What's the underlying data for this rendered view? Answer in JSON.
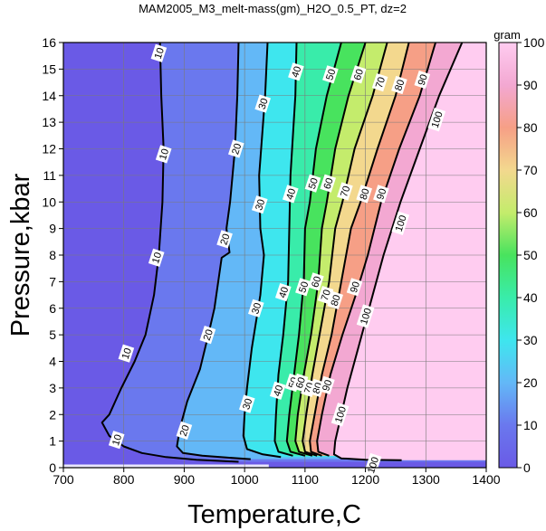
{
  "chart_data": {
    "type": "heatmap",
    "title": "MAM2005_M3_melt-mass(gm)_H2O_0.5_PT, dz=2",
    "xlabel": "Temperature,C",
    "ylabel": "Pressure,kbar",
    "xlim": [
      700,
      1400
    ],
    "ylim": [
      0,
      16
    ],
    "x_ticks": [
      {
        "value": 700,
        "label": "700"
      },
      {
        "value": 800,
        "label": "800"
      },
      {
        "value": 900,
        "label": "900"
      },
      {
        "value": 1000,
        "label": "1000"
      },
      {
        "value": 1100,
        "label": "1100"
      },
      {
        "value": 1200,
        "label": "1200"
      },
      {
        "value": 1300,
        "label": "1300"
      },
      {
        "value": 1400,
        "label": "1400"
      }
    ],
    "y_ticks": [
      {
        "value": 0,
        "label": "0"
      },
      {
        "value": 1,
        "label": "1"
      },
      {
        "value": 2,
        "label": "2"
      },
      {
        "value": 3,
        "label": "3"
      },
      {
        "value": 4,
        "label": "4"
      },
      {
        "value": 5,
        "label": "5"
      },
      {
        "value": 6,
        "label": "6"
      },
      {
        "value": 7,
        "label": "7"
      },
      {
        "value": 8,
        "label": "8"
      },
      {
        "value": 9,
        "label": "9"
      },
      {
        "value": 10,
        "label": "10"
      },
      {
        "value": 11,
        "label": "11"
      },
      {
        "value": 12,
        "label": "12"
      },
      {
        "value": 13,
        "label": "13"
      },
      {
        "value": 14,
        "label": "14"
      },
      {
        "value": 15,
        "label": "15"
      },
      {
        "value": 16,
        "label": "16"
      }
    ],
    "grid": true,
    "colorbar": {
      "label": "gram",
      "range": [
        0,
        100
      ],
      "ticks": [
        {
          "value": 0,
          "label": "0"
        },
        {
          "value": 10,
          "label": "10"
        },
        {
          "value": 20,
          "label": "20"
        },
        {
          "value": 30,
          "label": "30"
        },
        {
          "value": 40,
          "label": "40"
        },
        {
          "value": 50,
          "label": "50"
        },
        {
          "value": 60,
          "label": "60"
        },
        {
          "value": 70,
          "label": "70"
        },
        {
          "value": 80,
          "label": "80"
        },
        {
          "value": 90,
          "label": "90"
        },
        {
          "value": 100,
          "label": "100"
        }
      ],
      "stops": [
        {
          "value": 0,
          "color": "#6a5ae6"
        },
        {
          "value": 10,
          "color": "#6a78ee"
        },
        {
          "value": 20,
          "color": "#63b8f7"
        },
        {
          "value": 30,
          "color": "#3ee6ee"
        },
        {
          "value": 40,
          "color": "#39ecaa"
        },
        {
          "value": 50,
          "color": "#48e35e"
        },
        {
          "value": 60,
          "color": "#c4ec6c"
        },
        {
          "value": 70,
          "color": "#f3d88e"
        },
        {
          "value": 80,
          "color": "#f69f86"
        },
        {
          "value": 90,
          "color": "#f3a8d2"
        },
        {
          "value": 100,
          "color": "#ffccf0"
        }
      ]
    },
    "contours": [
      {
        "level": 10,
        "label": "10",
        "major": true,
        "points": [
          [
            860,
            16
          ],
          [
            862,
            14
          ],
          [
            866,
            12
          ],
          [
            864,
            10
          ],
          [
            858,
            8
          ],
          [
            850,
            6.5
          ],
          [
            836,
            5
          ],
          [
            818,
            4
          ],
          [
            796,
            3
          ],
          [
            776,
            2
          ],
          [
            764,
            1.7
          ],
          [
            776,
            1.2
          ],
          [
            800,
            0.8
          ],
          [
            830,
            0.55
          ],
          [
            870,
            0.4
          ],
          [
            920,
            0.3
          ],
          [
            990,
            0.22
          ]
        ],
        "labels": [
          {
            "x": 858,
            "y": 15.6,
            "text": "10"
          },
          {
            "x": 866,
            "y": 11.8,
            "text": "10"
          },
          {
            "x": 854,
            "y": 7.9,
            "text": "10"
          },
          {
            "x": 804,
            "y": 4.3,
            "text": "10"
          },
          {
            "x": 788,
            "y": 1.05,
            "text": "10"
          }
        ]
      },
      {
        "level": 20,
        "label": "20",
        "major": true,
        "points": [
          [
            990,
            16
          ],
          [
            988,
            14
          ],
          [
            984,
            12
          ],
          [
            976,
            10
          ],
          [
            970,
            9
          ],
          [
            975,
            8.1
          ],
          [
            962,
            7.9
          ],
          [
            950,
            6
          ],
          [
            940,
            5
          ],
          [
            926,
            3.7
          ],
          [
            905,
            2.5
          ],
          [
            893,
            1.5
          ],
          [
            888,
            0.8
          ],
          [
            898,
            0.55
          ],
          [
            930,
            0.45
          ],
          [
            970,
            0.38
          ],
          [
            1010,
            0.32
          ]
        ],
        "labels": [
          {
            "x": 986,
            "y": 12.0,
            "text": "20"
          },
          {
            "x": 967,
            "y": 8.6,
            "text": "20"
          },
          {
            "x": 939,
            "y": 5.0,
            "text": "20"
          },
          {
            "x": 900,
            "y": 1.4,
            "text": "20"
          }
        ]
      },
      {
        "level": 30,
        "label": "30",
        "major": true,
        "points": [
          [
            1038,
            16
          ],
          [
            1034,
            14
          ],
          [
            1024,
            11
          ],
          [
            1026,
            9
          ],
          [
            1032,
            8
          ],
          [
            1026,
            6.5
          ],
          [
            1012,
            4.5
          ],
          [
            1004,
            3
          ],
          [
            1000,
            2
          ],
          [
            998,
            1.2
          ],
          [
            1004,
            0.7
          ],
          [
            1030,
            0.5
          ],
          [
            1060,
            0.4
          ]
        ],
        "labels": [
          {
            "x": 1030,
            "y": 13.7,
            "text": "30"
          },
          {
            "x": 1025,
            "y": 9.9,
            "text": "30"
          },
          {
            "x": 1019,
            "y": 6.0,
            "text": "30"
          },
          {
            "x": 1004,
            "y": 2.4,
            "text": "30"
          }
        ]
      },
      {
        "level": 40,
        "label": "40",
        "major": true,
        "points": [
          [
            1086,
            16
          ],
          [
            1084,
            14
          ],
          [
            1076,
            11
          ],
          [
            1074,
            9
          ],
          [
            1072,
            7
          ],
          [
            1064,
            5
          ],
          [
            1056,
            3.5
          ],
          [
            1052,
            2
          ],
          [
            1050,
            1
          ],
          [
            1056,
            0.6
          ],
          [
            1080,
            0.45
          ]
        ],
        "labels": [
          {
            "x": 1085,
            "y": 14.9,
            "text": "40"
          },
          {
            "x": 1076,
            "y": 10.3,
            "text": "40"
          },
          {
            "x": 1064,
            "y": 6.6,
            "text": "40"
          },
          {
            "x": 1055,
            "y": 2.9,
            "text": "40"
          }
        ]
      },
      {
        "level": 50,
        "label": "50",
        "major": true,
        "points": [
          [
            1160,
            16
          ],
          [
            1136,
            14
          ],
          [
            1118,
            12
          ],
          [
            1108,
            10
          ],
          [
            1100,
            9
          ],
          [
            1098,
            7
          ],
          [
            1090,
            5
          ],
          [
            1082,
            3.5
          ],
          [
            1074,
            2
          ],
          [
            1070,
            1
          ],
          [
            1076,
            0.6
          ],
          [
            1100,
            0.45
          ]
        ],
        "labels": [
          {
            "x": 1142,
            "y": 14.8,
            "text": "50"
          },
          {
            "x": 1113,
            "y": 10.7,
            "text": "50"
          },
          {
            "x": 1097,
            "y": 6.8,
            "text": "50"
          },
          {
            "x": 1080,
            "y": 3.2,
            "text": "50"
          }
        ]
      },
      {
        "level": 60,
        "label": "60",
        "major": true,
        "points": [
          [
            1200,
            16
          ],
          [
            1172,
            14
          ],
          [
            1150,
            12
          ],
          [
            1136,
            10
          ],
          [
            1128,
            9
          ],
          [
            1122,
            7
          ],
          [
            1110,
            5
          ],
          [
            1098,
            3.5
          ],
          [
            1088,
            2
          ],
          [
            1084,
            1
          ],
          [
            1090,
            0.6
          ],
          [
            1112,
            0.45
          ]
        ],
        "labels": [
          {
            "x": 1188,
            "y": 14.8,
            "text": "60"
          },
          {
            "x": 1138,
            "y": 10.7,
            "text": "60"
          },
          {
            "x": 1118,
            "y": 7.0,
            "text": "60"
          },
          {
            "x": 1092,
            "y": 3.2,
            "text": "60"
          }
        ]
      },
      {
        "level": 70,
        "label": "70",
        "major": true,
        "points": [
          [
            1236,
            16
          ],
          [
            1212,
            14
          ],
          [
            1182,
            12
          ],
          [
            1162,
            10
          ],
          [
            1150,
            9
          ],
          [
            1140,
            7
          ],
          [
            1124,
            5
          ],
          [
            1112,
            3.5
          ],
          [
            1102,
            2
          ],
          [
            1096,
            1
          ],
          [
            1100,
            0.6
          ],
          [
            1120,
            0.45
          ]
        ],
        "labels": [
          {
            "x": 1224,
            "y": 14.5,
            "text": "70"
          },
          {
            "x": 1166,
            "y": 10.4,
            "text": "70"
          },
          {
            "x": 1134,
            "y": 6.5,
            "text": "70"
          },
          {
            "x": 1106,
            "y": 3.0,
            "text": "70"
          }
        ]
      },
      {
        "level": 80,
        "label": "80",
        "major": true,
        "points": [
          [
            1272,
            16
          ],
          [
            1250,
            14
          ],
          [
            1220,
            12
          ],
          [
            1192,
            10
          ],
          [
            1176,
            9
          ],
          [
            1160,
            7
          ],
          [
            1144,
            5
          ],
          [
            1128,
            3.5
          ],
          [
            1116,
            2
          ],
          [
            1108,
            1
          ],
          [
            1110,
            0.6
          ],
          [
            1128,
            0.45
          ]
        ],
        "labels": [
          {
            "x": 1256,
            "y": 14.4,
            "text": "80"
          },
          {
            "x": 1198,
            "y": 10.3,
            "text": "80"
          },
          {
            "x": 1150,
            "y": 6.3,
            "text": "80"
          },
          {
            "x": 1120,
            "y": 3.0,
            "text": "80"
          }
        ]
      },
      {
        "level": 90,
        "label": "90",
        "major": true,
        "points": [
          [
            1316,
            16
          ],
          [
            1290,
            14
          ],
          [
            1256,
            12
          ],
          [
            1226,
            10
          ],
          [
            1204,
            8
          ],
          [
            1184,
            6.5
          ],
          [
            1162,
            5
          ],
          [
            1142,
            3.5
          ],
          [
            1128,
            2
          ],
          [
            1120,
            1
          ],
          [
            1122,
            0.6
          ],
          [
            1140,
            0.45
          ]
        ],
        "labels": [
          {
            "x": 1294,
            "y": 14.6,
            "text": "90"
          },
          {
            "x": 1226,
            "y": 10.3,
            "text": "90"
          },
          {
            "x": 1182,
            "y": 6.8,
            "text": "90"
          },
          {
            "x": 1136,
            "y": 3.1,
            "text": "90"
          }
        ]
      },
      {
        "level": 100,
        "label": "100",
        "major": true,
        "points": [
          [
            1360,
            16
          ],
          [
            1322,
            14
          ],
          [
            1290,
            12
          ],
          [
            1258,
            10
          ],
          [
            1230,
            8
          ],
          [
            1206,
            6
          ],
          [
            1188,
            4.5
          ],
          [
            1170,
            3
          ],
          [
            1160,
            2
          ],
          [
            1150,
            1
          ],
          [
            1148,
            0.5
          ],
          [
            1160,
            0.35
          ],
          [
            1200,
            0.3
          ],
          [
            1260,
            0.28
          ]
        ],
        "labels": [
          {
            "x": 1318,
            "y": 13.1,
            "text": "100"
          },
          {
            "x": 1258,
            "y": 9.2,
            "text": "100"
          },
          {
            "x": 1200,
            "y": 5.7,
            "text": "100"
          },
          {
            "x": 1158,
            "y": 2.0,
            "text": "100"
          },
          {
            "x": 1212,
            "y": 0.1,
            "text": "100"
          }
        ]
      }
    ]
  }
}
